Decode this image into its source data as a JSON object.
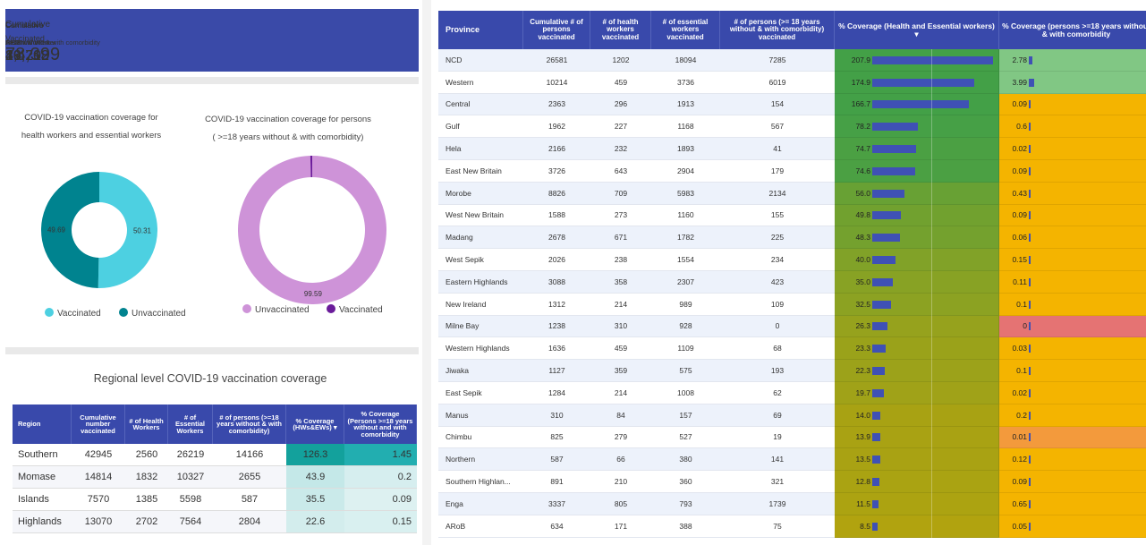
{
  "kpis": [
    {
      "label": "Cumulative",
      "sub": "Vaccinated",
      "value": "78,399"
    },
    {
      "label": "Cumulative",
      "sub": "Health Workers",
      "value": "8,479"
    },
    {
      "label": "Cumulative",
      "sub": "Essential Worker",
      "value": "49,708"
    },
    {
      "label": "Cumulative",
      "sub": ">=18 without & with comorbidity",
      "value": "20,212"
    },
    {
      "label": "Cumulative",
      "sub": "AEFI",
      "value": "16"
    }
  ],
  "donuts": [
    {
      "type": "pie",
      "title": [
        "COVID-19  vaccination coverage  for",
        "health workers and essential workers"
      ],
      "series": [
        {
          "name": "Vaccinated",
          "color": "#4dd0e1",
          "value": 50.31,
          "value_label": "50.31"
        },
        {
          "name": "Unvaccinated",
          "color": "#00838f",
          "value": 49.69,
          "value_label": "49.69"
        }
      ]
    },
    {
      "type": "pie",
      "title": [
        "COVID-19  vaccination coverage  for persons",
        "( >=18 years without & with comorbidity)"
      ],
      "series": [
        {
          "name": "Unvaccinated",
          "color": "#ce93d8",
          "value": 99.59,
          "value_label": "99.59"
        },
        {
          "name": "Vaccinated",
          "color": "#6a1b9a",
          "value": 0.41
        }
      ]
    }
  ],
  "regional": {
    "title": "Regional level COVID-19 vaccination coverage",
    "columns": [
      "Region",
      "Cumulative number vaccinated",
      "# of Health Workers",
      "# of Essential Workers",
      "# of persons (>=18 years without & with comorbidity)",
      "% Coverage (HWs&EWs) ▾",
      "% Coverage (Persons >=18 years without and with comorbidity"
    ],
    "rows": [
      [
        "Southern",
        "42945",
        "2560",
        "26219",
        "14166",
        "126.3",
        "1.45"
      ],
      [
        "Momase",
        "14814",
        "1832",
        "10327",
        "2655",
        "43.9",
        "0.2"
      ],
      [
        "Islands",
        "7570",
        "1385",
        "5598",
        "587",
        "35.5",
        "0.09"
      ],
      [
        "Highlands",
        "13070",
        "2702",
        "7564",
        "2804",
        "22.6",
        "0.15"
      ]
    ]
  },
  "province": {
    "columns": [
      "Province",
      "Cumulative # of persons vaccinated",
      "# of health workers vaccinated",
      "# of essential workers vaccinated",
      "# of persons (>= 18 years without & with comorbidity) vaccinated",
      "% Coverage (Health and Essential workers) ▾",
      "% Coverage (persons >=18 years without & with comorbidity"
    ],
    "rows": [
      [
        "NCD",
        "26581",
        "1202",
        "18094",
        "7285",
        "207.9",
        "2.78"
      ],
      [
        "Western",
        "10214",
        "459",
        "3736",
        "6019",
        "174.9",
        "3.99"
      ],
      [
        "Central",
        "2363",
        "296",
        "1913",
        "154",
        "166.7",
        "0.09"
      ],
      [
        "Gulf",
        "1962",
        "227",
        "1168",
        "567",
        "78.2",
        "0.6"
      ],
      [
        "Hela",
        "2166",
        "232",
        "1893",
        "41",
        "74.7",
        "0.02"
      ],
      [
        "East New Britain",
        "3726",
        "643",
        "2904",
        "179",
        "74.6",
        "0.09"
      ],
      [
        "Morobe",
        "8826",
        "709",
        "5983",
        "2134",
        "56.0",
        "0.43"
      ],
      [
        "West New Britain",
        "1588",
        "273",
        "1160",
        "155",
        "49.8",
        "0.09"
      ],
      [
        "Madang",
        "2678",
        "671",
        "1782",
        "225",
        "48.3",
        "0.06"
      ],
      [
        "West Sepik",
        "2026",
        "238",
        "1554",
        "234",
        "40.0",
        "0.15"
      ],
      [
        "Eastern Highlands",
        "3088",
        "358",
        "2307",
        "423",
        "35.0",
        "0.11"
      ],
      [
        "New Ireland",
        "1312",
        "214",
        "989",
        "109",
        "32.5",
        "0.1"
      ],
      [
        "Milne Bay",
        "1238",
        "310",
        "928",
        "0",
        "26.3",
        "0"
      ],
      [
        "Western Highlands",
        "1636",
        "459",
        "1109",
        "68",
        "23.3",
        "0.03"
      ],
      [
        "Jiwaka",
        "1127",
        "359",
        "575",
        "193",
        "22.3",
        "0.1"
      ],
      [
        "East Sepik",
        "1284",
        "214",
        "1008",
        "62",
        "19.7",
        "0.02"
      ],
      [
        "Manus",
        "310",
        "84",
        "157",
        "69",
        "14.0",
        "0.2"
      ],
      [
        "Chimbu",
        "825",
        "279",
        "527",
        "19",
        "13.9",
        "0.01"
      ],
      [
        "Northern",
        "587",
        "66",
        "380",
        "141",
        "13.5",
        "0.12"
      ],
      [
        "Southern Highlan...",
        "891",
        "210",
        "360",
        "321",
        "12.8",
        "0.09"
      ],
      [
        "Enga",
        "3337",
        "805",
        "793",
        "1739",
        "11.5",
        "0.65"
      ],
      [
        "ARoB",
        "634",
        "171",
        "388",
        "75",
        "8.5",
        "0.05"
      ]
    ]
  }
}
